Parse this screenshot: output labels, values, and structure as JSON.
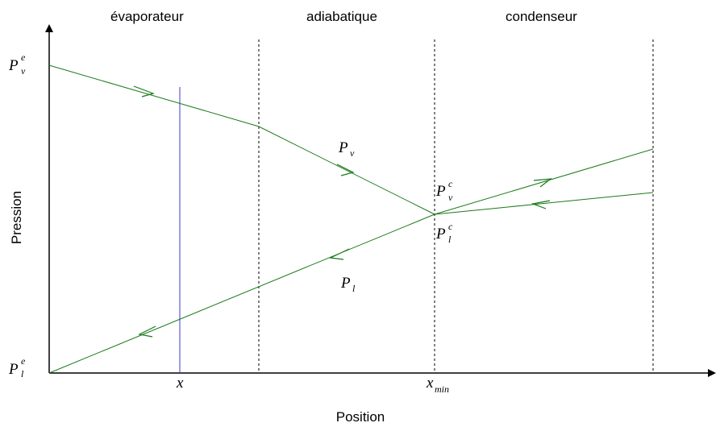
{
  "regions": {
    "evaporator": "évaporateur",
    "adiabatic": "adiabatique",
    "condenser": "condenseur"
  },
  "axes": {
    "x_title": "Position",
    "y_title": "Pression"
  },
  "symbols": {
    "P": "P",
    "v": "v",
    "l": "l",
    "e": "e",
    "c": "c",
    "x": "x",
    "min": "min"
  },
  "colors": {
    "axis": "#000000",
    "curve": "#1a7a1a",
    "probe_line": "#3a3acc",
    "region_divider": "#000000"
  }
}
